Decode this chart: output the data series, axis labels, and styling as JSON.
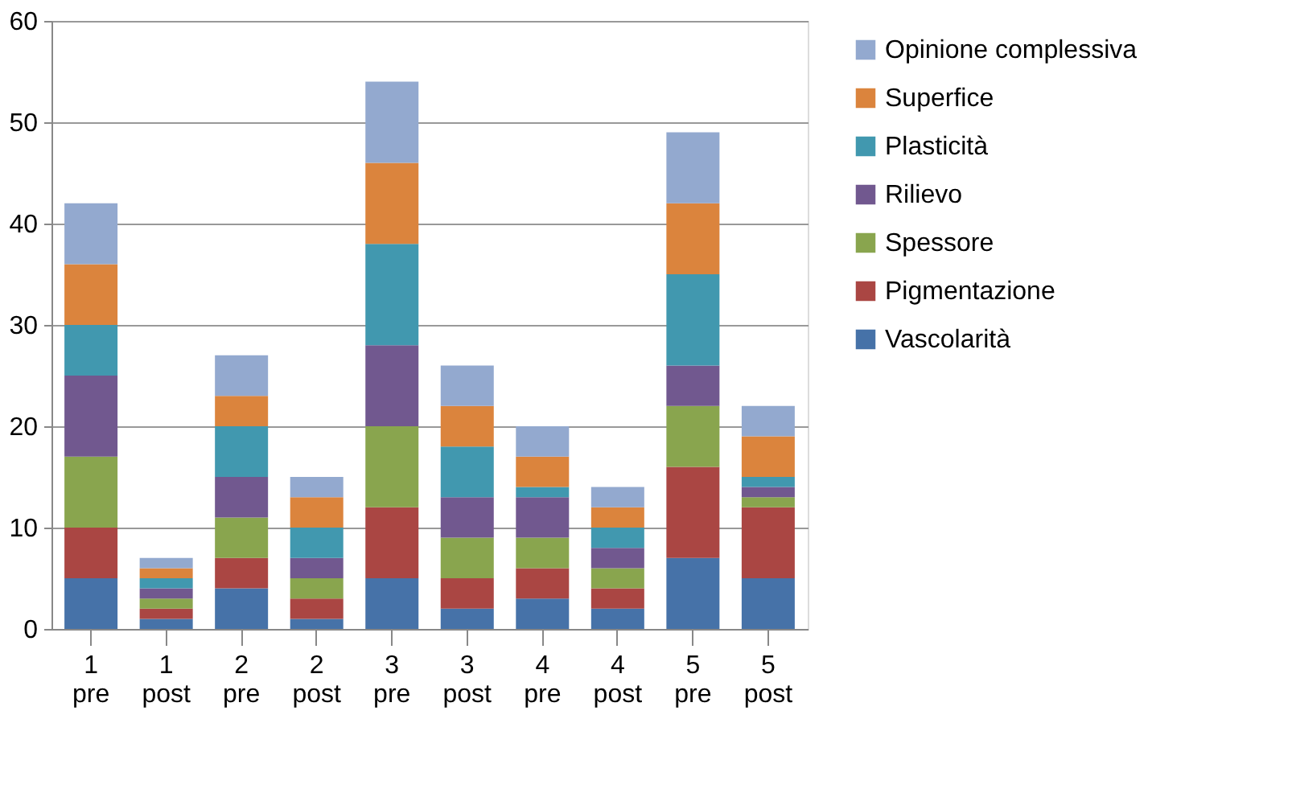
{
  "chart_data": {
    "type": "bar",
    "stacked": true,
    "categories": [
      "1 pre",
      "1 post",
      "2 pre",
      "2 post",
      "3 pre",
      "3 post",
      "4 pre",
      "4 post",
      "5 pre",
      "5 post"
    ],
    "series": [
      {
        "name": "Vascolarità",
        "color": "#4672a8",
        "values": [
          5,
          1,
          4,
          1,
          5,
          2,
          3,
          2,
          7,
          5
        ]
      },
      {
        "name": "Pigmentazione",
        "color": "#aa4643",
        "values": [
          5,
          1,
          3,
          2,
          7,
          3,
          3,
          2,
          9,
          7
        ]
      },
      {
        "name": "Spessore",
        "color": "#89a54e",
        "values": [
          7,
          1,
          4,
          2,
          8,
          4,
          3,
          2,
          6,
          1
        ]
      },
      {
        "name": "Rilievo",
        "color": "#71588f",
        "values": [
          8,
          1,
          4,
          2,
          8,
          4,
          4,
          2,
          4,
          1
        ]
      },
      {
        "name": "Plasticità",
        "color": "#4198af",
        "values": [
          5,
          1,
          5,
          3,
          10,
          5,
          1,
          2,
          9,
          1
        ]
      },
      {
        "name": "Superfice",
        "color": "#db843d",
        "values": [
          6,
          1,
          3,
          3,
          8,
          4,
          3,
          2,
          7,
          4
        ]
      },
      {
        "name": "Opinione complessiva",
        "color": "#93a9cf",
        "values": [
          6,
          1,
          4,
          2,
          8,
          4,
          3,
          2,
          7,
          3
        ]
      }
    ],
    "ylim": [
      0,
      60
    ],
    "yticks": [
      0,
      10,
      20,
      30,
      40,
      50,
      60
    ],
    "grid": "y",
    "legend": "right"
  }
}
